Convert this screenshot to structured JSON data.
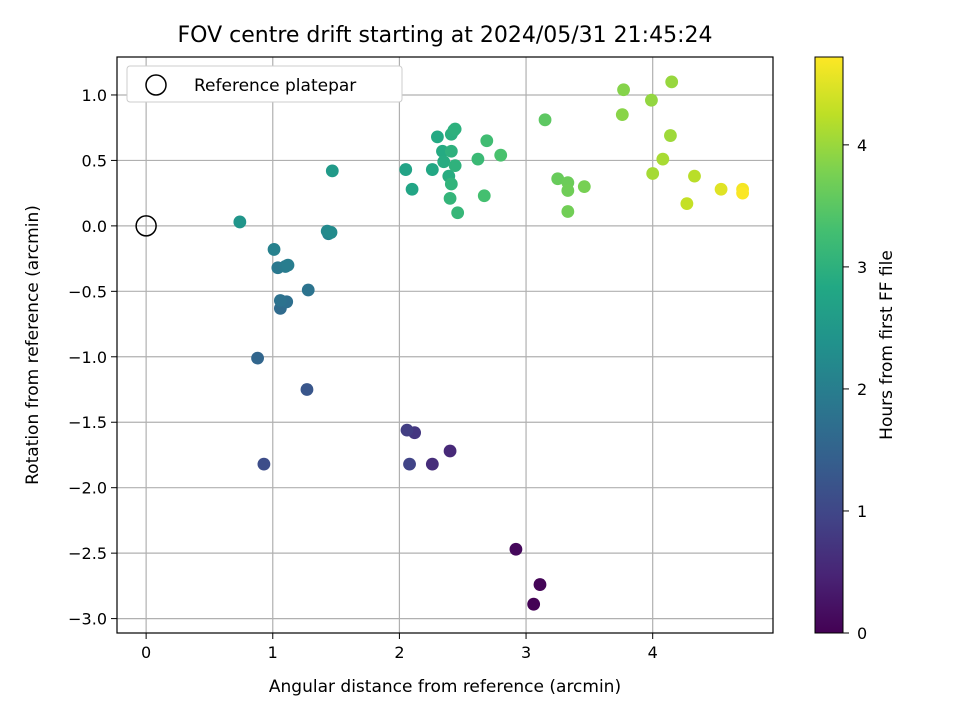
{
  "chart_data": {
    "type": "scatter",
    "title": "FOV centre drift starting at 2024/05/31 21:45:24",
    "xlabel": "Angular distance from reference (arcmin)",
    "ylabel": "Rotation from reference (arcmin)",
    "xlim": [
      -0.23,
      4.95
    ],
    "ylim": [
      -3.11,
      1.29
    ],
    "x_ticks": [
      0,
      1,
      2,
      3,
      4
    ],
    "y_ticks": [
      1.0,
      0.5,
      0.0,
      -0.5,
      -1.0,
      -1.5,
      -2.0,
      -2.5,
      -3.0
    ],
    "x_tick_labels": [
      "0",
      "1",
      "2",
      "3",
      "4"
    ],
    "y_tick_labels": [
      "1.0",
      "0.5",
      "0.0",
      "−0.5",
      "−1.0",
      "−1.5",
      "−2.0",
      "−2.5",
      "−3.0"
    ],
    "grid": true,
    "colormap": "viridis",
    "colorbar": {
      "label": "Hours from first FF file",
      "range": [
        0,
        4.72
      ],
      "ticks": [
        0,
        1,
        2,
        3,
        4
      ],
      "tick_labels": [
        "0",
        "1",
        "2",
        "3",
        "4"
      ]
    },
    "legend": {
      "placement": "upper-left",
      "entries": [
        {
          "label": "Reference platepar",
          "marker": "open-circle",
          "color": "#000000"
        }
      ]
    },
    "reference_point": {
      "x": 0.0,
      "y": 0.0
    },
    "points": [
      {
        "x": 3.06,
        "y": -2.89,
        "t": 0.02
      },
      {
        "x": 3.11,
        "y": -2.74,
        "t": 0.05
      },
      {
        "x": 2.92,
        "y": -2.47,
        "t": 0.1
      },
      {
        "x": 2.4,
        "y": -1.72,
        "t": 0.55
      },
      {
        "x": 2.26,
        "y": -1.82,
        "t": 0.6
      },
      {
        "x": 2.12,
        "y": -1.58,
        "t": 0.75
      },
      {
        "x": 2.06,
        "y": -1.56,
        "t": 0.85
      },
      {
        "x": 2.08,
        "y": -1.82,
        "t": 0.95
      },
      {
        "x": 0.93,
        "y": -1.82,
        "t": 1.1
      },
      {
        "x": 1.27,
        "y": -1.25,
        "t": 1.25
      },
      {
        "x": 0.88,
        "y": -1.01,
        "t": 1.55
      },
      {
        "x": 1.06,
        "y": -0.63,
        "t": 1.65
      },
      {
        "x": 1.11,
        "y": -0.58,
        "t": 1.72
      },
      {
        "x": 1.06,
        "y": -0.57,
        "t": 1.78
      },
      {
        "x": 1.28,
        "y": -0.49,
        "t": 1.8
      },
      {
        "x": 1.04,
        "y": -0.32,
        "t": 1.88
      },
      {
        "x": 1.1,
        "y": -0.31,
        "t": 1.95
      },
      {
        "x": 1.12,
        "y": -0.3,
        "t": 1.98
      },
      {
        "x": 1.01,
        "y": -0.18,
        "t": 2.05
      },
      {
        "x": 1.44,
        "y": -0.06,
        "t": 2.1
      },
      {
        "x": 1.43,
        "y": -0.04,
        "t": 2.2
      },
      {
        "x": 1.46,
        "y": -0.05,
        "t": 2.25
      },
      {
        "x": 0.74,
        "y": 0.03,
        "t": 2.45
      },
      {
        "x": 1.47,
        "y": 0.42,
        "t": 2.55
      },
      {
        "x": 2.05,
        "y": 0.43,
        "t": 2.72
      },
      {
        "x": 2.1,
        "y": 0.28,
        "t": 2.78
      },
      {
        "x": 2.26,
        "y": 0.43,
        "t": 2.82
      },
      {
        "x": 2.3,
        "y": 0.68,
        "t": 2.85
      },
      {
        "x": 2.34,
        "y": 0.57,
        "t": 2.88
      },
      {
        "x": 2.35,
        "y": 0.49,
        "t": 2.9
      },
      {
        "x": 2.39,
        "y": 0.38,
        "t": 2.92
      },
      {
        "x": 2.41,
        "y": 0.7,
        "t": 2.95
      },
      {
        "x": 2.43,
        "y": 0.73,
        "t": 2.97
      },
      {
        "x": 2.44,
        "y": 0.74,
        "t": 2.99
      },
      {
        "x": 2.41,
        "y": 0.57,
        "t": 3.0
      },
      {
        "x": 2.44,
        "y": 0.46,
        "t": 3.02
      },
      {
        "x": 2.41,
        "y": 0.32,
        "t": 3.05
      },
      {
        "x": 2.4,
        "y": 0.21,
        "t": 3.08
      },
      {
        "x": 2.46,
        "y": 0.1,
        "t": 3.12
      },
      {
        "x": 2.62,
        "y": 0.51,
        "t": 3.18
      },
      {
        "x": 2.69,
        "y": 0.65,
        "t": 3.25
      },
      {
        "x": 2.67,
        "y": 0.23,
        "t": 3.3
      },
      {
        "x": 2.8,
        "y": 0.54,
        "t": 3.35
      },
      {
        "x": 3.15,
        "y": 0.81,
        "t": 3.52
      },
      {
        "x": 3.25,
        "y": 0.36,
        "t": 3.62
      },
      {
        "x": 3.33,
        "y": 0.33,
        "t": 3.65
      },
      {
        "x": 3.33,
        "y": 0.27,
        "t": 3.68
      },
      {
        "x": 3.33,
        "y": 0.11,
        "t": 3.7
      },
      {
        "x": 3.46,
        "y": 0.3,
        "t": 3.75
      },
      {
        "x": 3.77,
        "y": 1.04,
        "t": 3.85
      },
      {
        "x": 3.76,
        "y": 0.85,
        "t": 3.88
      },
      {
        "x": 3.99,
        "y": 0.96,
        "t": 3.95
      },
      {
        "x": 4.15,
        "y": 1.1,
        "t": 3.98
      },
      {
        "x": 4.14,
        "y": 0.69,
        "t": 4.03
      },
      {
        "x": 4.08,
        "y": 0.51,
        "t": 4.1
      },
      {
        "x": 4.0,
        "y": 0.4,
        "t": 4.08
      },
      {
        "x": 4.33,
        "y": 0.38,
        "t": 4.22
      },
      {
        "x": 4.27,
        "y": 0.17,
        "t": 4.3
      },
      {
        "x": 4.54,
        "y": 0.28,
        "t": 4.5
      },
      {
        "x": 4.71,
        "y": 0.28,
        "t": 4.65
      },
      {
        "x": 4.71,
        "y": 0.25,
        "t": 4.7
      }
    ]
  }
}
